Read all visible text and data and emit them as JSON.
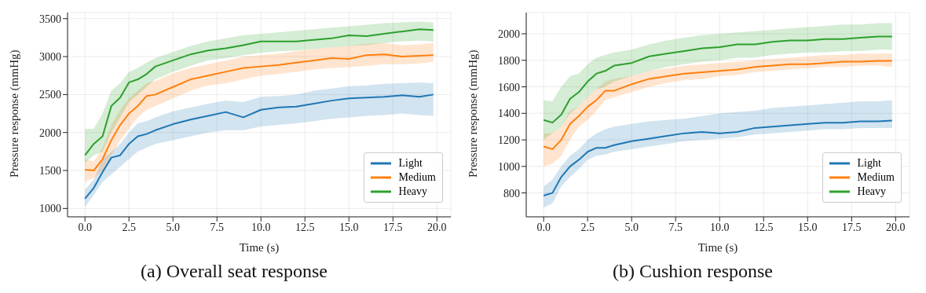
{
  "chart_data": [
    {
      "type": "line",
      "title": "(a) Overall seat response",
      "xlabel": "Time (s)",
      "ylabel": "Pressure response (mmHg)",
      "x": [
        0,
        0.5,
        1,
        1.5,
        2,
        2.5,
        3,
        3.5,
        4,
        5,
        6,
        7,
        8,
        9,
        10,
        11,
        12,
        13,
        14,
        15,
        16,
        17,
        18,
        19,
        19.8
      ],
      "series": [
        {
          "name": "Light",
          "color": "#1f77b4",
          "values": [
            1130,
            1270,
            1480,
            1670,
            1700,
            1850,
            1950,
            1980,
            2030,
            2110,
            2170,
            2220,
            2270,
            2200,
            2300,
            2330,
            2340,
            2380,
            2420,
            2450,
            2460,
            2470,
            2490,
            2470,
            2500
          ],
          "lower": [
            1020,
            1180,
            1350,
            1450,
            1550,
            1650,
            1750,
            1800,
            1850,
            1900,
            1950,
            2000,
            2030,
            2030,
            2080,
            2100,
            2120,
            2150,
            2180,
            2200,
            2220,
            2230,
            2250,
            2230,
            2220
          ],
          "upper": [
            1250,
            1380,
            1650,
            1750,
            1850,
            2000,
            2120,
            2150,
            2200,
            2280,
            2330,
            2380,
            2420,
            2400,
            2470,
            2480,
            2500,
            2550,
            2580,
            2610,
            2620,
            2640,
            2650,
            2660,
            2650
          ]
        },
        {
          "name": "Medium",
          "color": "#ff7f0e",
          "values": [
            1510,
            1500,
            1650,
            1900,
            2100,
            2250,
            2350,
            2480,
            2500,
            2600,
            2700,
            2750,
            2800,
            2850,
            2870,
            2890,
            2920,
            2950,
            2980,
            2970,
            3020,
            3030,
            3000,
            3010,
            3020
          ],
          "lower": [
            1350,
            1400,
            1500,
            1700,
            1900,
            2050,
            2200,
            2300,
            2350,
            2450,
            2550,
            2620,
            2650,
            2700,
            2750,
            2770,
            2800,
            2830,
            2850,
            2860,
            2880,
            2900,
            2900,
            2910,
            2930
          ],
          "upper": [
            1650,
            1620,
            1800,
            2100,
            2300,
            2450,
            2550,
            2650,
            2680,
            2780,
            2850,
            2900,
            2950,
            3000,
            3020,
            3040,
            3070,
            3100,
            3120,
            3140,
            3170,
            3180,
            3150,
            3160,
            3180
          ]
        },
        {
          "name": "Heavy",
          "color": "#2ca02c",
          "values": [
            1700,
            1850,
            1950,
            2350,
            2460,
            2660,
            2700,
            2770,
            2870,
            2950,
            3030,
            3080,
            3110,
            3150,
            3200,
            3200,
            3200,
            3220,
            3240,
            3280,
            3270,
            3300,
            3330,
            3360,
            3350
          ],
          "lower": [
            1600,
            1700,
            1750,
            2000,
            2200,
            2400,
            2500,
            2600,
            2700,
            2800,
            2880,
            2950,
            2980,
            3020,
            3050,
            3070,
            3080,
            3100,
            3120,
            3140,
            3150,
            3180,
            3200,
            3210,
            3200
          ],
          "upper": [
            2050,
            2050,
            2250,
            2550,
            2650,
            2800,
            2850,
            2920,
            2980,
            3060,
            3140,
            3200,
            3240,
            3280,
            3300,
            3320,
            3340,
            3360,
            3380,
            3400,
            3420,
            3440,
            3450,
            3460,
            3450
          ]
        }
      ],
      "xlim": [
        -0.99,
        20.79
      ],
      "xticks": [
        {
          "value": 0,
          "label": "0.0"
        },
        {
          "value": 2.5,
          "label": "2.5"
        },
        {
          "value": 5,
          "label": "5.0"
        },
        {
          "value": 7.5,
          "label": "7.5"
        },
        {
          "value": 10,
          "label": "10.0"
        },
        {
          "value": 12.5,
          "label": "12.5"
        },
        {
          "value": 15,
          "label": "15.0"
        },
        {
          "value": 17.5,
          "label": "17.5"
        },
        {
          "value": 20,
          "label": "20.0"
        }
      ],
      "ylim": [
        890,
        3580
      ],
      "yticks": [
        1000,
        1500,
        2000,
        2500,
        3000,
        3500
      ],
      "grid": true,
      "legend": "bottom right",
      "marker": "none",
      "line_style": "solid"
    },
    {
      "type": "line",
      "title": "(b) Cushion response",
      "xlabel": "Time (s)",
      "ylabel": "Pressure response (mmHg)",
      "x": [
        0,
        0.5,
        1,
        1.5,
        2,
        2.5,
        3,
        3.5,
        4,
        5,
        6,
        7,
        8,
        9,
        10,
        11,
        12,
        13,
        14,
        15,
        16,
        17,
        18,
        19,
        19.8
      ],
      "series": [
        {
          "name": "Light",
          "color": "#1f77b4",
          "values": [
            780,
            800,
            920,
            1000,
            1050,
            1110,
            1140,
            1140,
            1160,
            1190,
            1210,
            1230,
            1250,
            1260,
            1250,
            1260,
            1290,
            1300,
            1310,
            1320,
            1330,
            1330,
            1340,
            1340,
            1345
          ],
          "lower": [
            690,
            720,
            850,
            920,
            980,
            1050,
            1080,
            1090,
            1110,
            1130,
            1150,
            1170,
            1190,
            1200,
            1210,
            1220,
            1240,
            1250,
            1260,
            1270,
            1280,
            1280,
            1290,
            1290,
            1290
          ],
          "upper": [
            850,
            900,
            1000,
            1080,
            1130,
            1200,
            1250,
            1280,
            1300,
            1320,
            1340,
            1350,
            1360,
            1380,
            1400,
            1410,
            1420,
            1440,
            1450,
            1460,
            1470,
            1480,
            1490,
            1490,
            1500
          ]
        },
        {
          "name": "Medium",
          "color": "#ff7f0e",
          "values": [
            1150,
            1130,
            1200,
            1320,
            1380,
            1450,
            1500,
            1570,
            1570,
            1620,
            1660,
            1680,
            1700,
            1710,
            1720,
            1730,
            1750,
            1760,
            1770,
            1770,
            1780,
            1790,
            1790,
            1795,
            1795
          ],
          "lower": [
            1000,
            1020,
            1080,
            1200,
            1300,
            1350,
            1420,
            1500,
            1520,
            1560,
            1600,
            1630,
            1650,
            1660,
            1680,
            1690,
            1710,
            1720,
            1730,
            1740,
            1750,
            1750,
            1760,
            1760,
            1750
          ],
          "upper": [
            1250,
            1250,
            1300,
            1420,
            1450,
            1520,
            1580,
            1640,
            1660,
            1680,
            1720,
            1740,
            1760,
            1770,
            1780,
            1790,
            1800,
            1810,
            1820,
            1830,
            1840,
            1840,
            1850,
            1850,
            1850
          ]
        },
        {
          "name": "Heavy",
          "color": "#2ca02c",
          "values": [
            1350,
            1330,
            1390,
            1510,
            1560,
            1640,
            1700,
            1720,
            1760,
            1780,
            1830,
            1850,
            1870,
            1890,
            1900,
            1920,
            1920,
            1940,
            1950,
            1950,
            1960,
            1960,
            1970,
            1980,
            1980
          ],
          "lower": [
            1200,
            1250,
            1300,
            1400,
            1450,
            1520,
            1580,
            1600,
            1640,
            1680,
            1720,
            1750,
            1770,
            1790,
            1800,
            1820,
            1820,
            1840,
            1850,
            1860,
            1860,
            1870,
            1870,
            1880,
            1880
          ],
          "upper": [
            1500,
            1490,
            1600,
            1680,
            1700,
            1770,
            1820,
            1840,
            1860,
            1880,
            1920,
            1950,
            1970,
            1990,
            2000,
            2010,
            2020,
            2030,
            2040,
            2050,
            2060,
            2070,
            2070,
            2080,
            2080
          ]
        }
      ],
      "xlim": [
        -0.99,
        20.79
      ],
      "xticks": [
        {
          "value": 0,
          "label": "0.0"
        },
        {
          "value": 2.5,
          "label": "2.5"
        },
        {
          "value": 5,
          "label": "5.0"
        },
        {
          "value": 7.5,
          "label": "7.5"
        },
        {
          "value": 10,
          "label": "10.0"
        },
        {
          "value": 12.5,
          "label": "12.5"
        },
        {
          "value": 15,
          "label": "15.0"
        },
        {
          "value": 17.5,
          "label": "17.5"
        },
        {
          "value": 20,
          "label": "20.0"
        }
      ],
      "ylim": [
        620,
        2160
      ],
      "yticks": [
        800,
        1000,
        1200,
        1400,
        1600,
        1800,
        2000
      ],
      "grid": true,
      "legend": "bottom right",
      "marker": "none",
      "line_style": "solid"
    }
  ]
}
